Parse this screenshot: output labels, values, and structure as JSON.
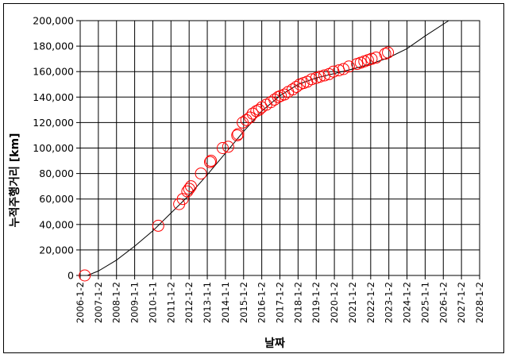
{
  "chart_data": {
    "type": "scatter",
    "title": "",
    "xlabel": "날짜",
    "ylabel": "누적주행거리 [km]",
    "x_tick_labels": [
      "2006-1-2",
      "2007-1-2",
      "2008-1-2",
      "2009-1-1",
      "2010-1-1",
      "2011-1-2",
      "2012-1-2",
      "2013-1-1",
      "2014-1-1",
      "2015-1-2",
      "2016-1-2",
      "2017-1-2",
      "2018-1-2",
      "2019-1-2",
      "2020-1-2",
      "2021-1-2",
      "2022-1-2",
      "2023-1-2",
      "2024-1-2",
      "2025-1-1",
      "2026-1-2",
      "2027-1-2",
      "2028-1-2"
    ],
    "xlim": [
      2006.0,
      2028.0
    ],
    "ylim": [
      0,
      200000
    ],
    "y_ticks": [
      0,
      20000,
      40000,
      60000,
      80000,
      100000,
      120000,
      140000,
      160000,
      180000,
      200000
    ],
    "y_tick_labels": [
      "0",
      "20,000",
      "40,000",
      "60,000",
      "80,000",
      "100,000",
      "120,000",
      "140,000",
      "160,000",
      "180,000",
      "200,000"
    ],
    "grid": true,
    "marker": "open-circle",
    "colors": {
      "marker": "#ff0000",
      "trend": "#000000",
      "grid": "#000000"
    },
    "series": [
      {
        "kind": "observed",
        "x": [
          2006.25,
          2010.3,
          2011.45,
          2011.65,
          2011.9,
          2012.0,
          2012.1,
          2012.65,
          2013.15,
          2013.2,
          2013.85,
          2014.15,
          2014.65,
          2014.7,
          2014.95,
          2015.15,
          2015.35,
          2015.5,
          2015.7,
          2015.85,
          2016.0,
          2016.25,
          2016.5,
          2016.7,
          2016.9,
          2017.05,
          2017.25,
          2017.45,
          2017.7,
          2017.9,
          2018.1,
          2018.3,
          2018.5,
          2018.75,
          2019.0,
          2019.2,
          2019.45,
          2019.7,
          2019.95,
          2020.25,
          2020.5,
          2020.8,
          2021.25,
          2021.45,
          2021.65,
          2021.85,
          2022.05,
          2022.3,
          2022.8,
          2022.95
        ],
        "y": [
          0,
          39000,
          56000,
          60000,
          66000,
          68000,
          70000,
          80000,
          89000,
          90000,
          100000,
          101000,
          110000,
          111000,
          120000,
          122000,
          124000,
          127000,
          129000,
          130000,
          132000,
          134000,
          136000,
          138000,
          140000,
          141000,
          142000,
          144000,
          146000,
          148000,
          150000,
          151000,
          152000,
          154000,
          155000,
          156000,
          157000,
          158000,
          160000,
          161000,
          162000,
          164000,
          166000,
          167000,
          168000,
          169000,
          170000,
          171000,
          174000,
          175000
        ]
      },
      {
        "kind": "trendline",
        "x": [
          2006.4,
          2007,
          2008,
          2009,
          2010,
          2011,
          2012,
          2013,
          2014,
          2015,
          2016,
          2017,
          2018,
          2019,
          2020,
          2021,
          2022,
          2023,
          2024,
          2025,
          2026.3
        ],
        "y": [
          0,
          3500,
          12000,
          23000,
          35000,
          49000,
          63000,
          79000,
          96000,
          113000,
          129000,
          141000,
          150000,
          155000,
          158500,
          162000,
          166000,
          171000,
          178000,
          188000,
          200000
        ]
      }
    ]
  }
}
